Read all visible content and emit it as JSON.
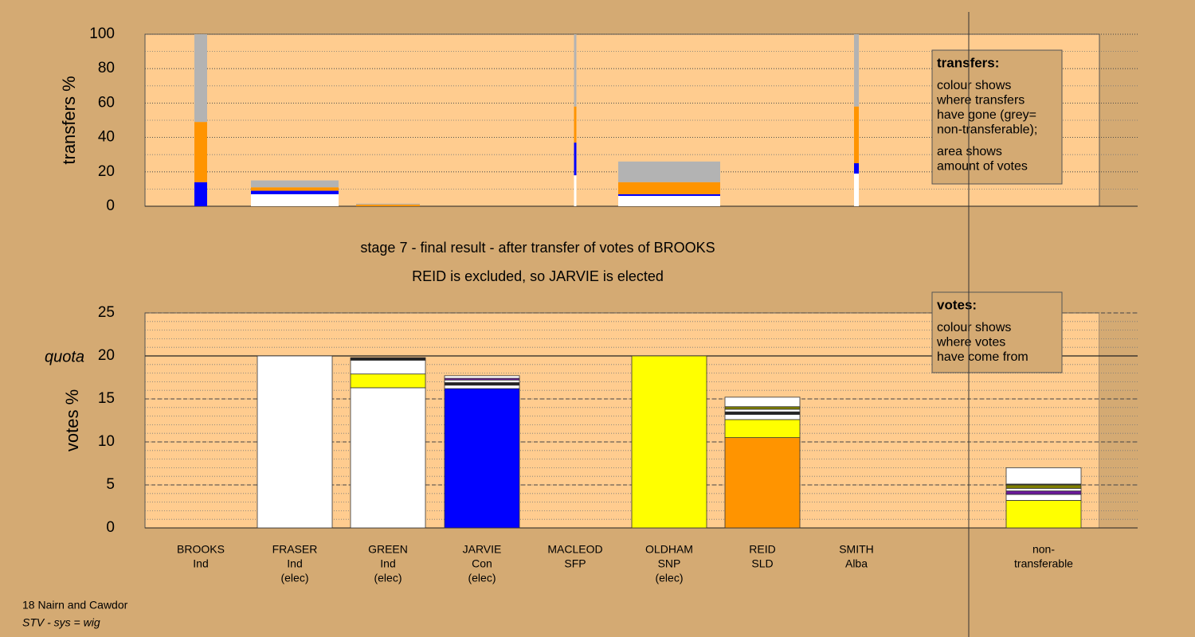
{
  "chart_data": [
    {
      "type": "stacked-bar",
      "ylabel": "transfers %",
      "ylim": [
        0,
        100
      ],
      "yticks": [
        0,
        20,
        40,
        60,
        80,
        100
      ],
      "minor_step": 10,
      "legend": {
        "title": "transfers:",
        "lines": [
          "colour shows",
          "where transfers",
          "have gone (grey=",
          "non-transferable);",
          "area shows",
          "amount of votes"
        ]
      },
      "stacks": [
        [
          {
            "color": "#0000ff",
            "value": 14
          },
          {
            "color": "#ff9400",
            "value": 35
          },
          {
            "color": "#b3b3b3",
            "value": 51
          }
        ],
        [
          {
            "color": "#ffffff",
            "value": 7
          },
          {
            "color": "#0000ff",
            "value": 2
          },
          {
            "color": "#ff9400",
            "value": 2
          },
          {
            "color": "#b3b3b3",
            "value": 4
          }
        ],
        [
          {
            "color": "#ff9400",
            "value": 1
          },
          {
            "color": "#b3b3b3",
            "value": 0.5
          }
        ],
        [],
        [
          {
            "color": "#ffffff",
            "value": 18
          },
          {
            "color": "#0000ff",
            "value": 19
          },
          {
            "color": "#ff9400",
            "value": 21
          },
          {
            "color": "#b3b3b3",
            "value": 42
          }
        ],
        [
          {
            "color": "#ffffff",
            "value": 6
          },
          {
            "color": "#0000ff",
            "value": 1
          },
          {
            "color": "#ff9400",
            "value": 7
          },
          {
            "color": "#b3b3b3",
            "value": 12
          }
        ],
        [],
        [
          {
            "color": "#ffffff",
            "value": 19
          },
          {
            "color": "#0000ff",
            "value": 6
          },
          {
            "color": "#ff9400",
            "value": 33
          },
          {
            "color": "#b3b3b3",
            "value": 42
          }
        ],
        []
      ]
    },
    {
      "type": "stacked-bar",
      "title": [
        "stage 7 - final result - after transfer of votes of BROOKS",
        "REID is excluded, so JARVIE is elected"
      ],
      "ylabel": "votes %",
      "ylim": [
        0,
        25
      ],
      "yticks": [
        0,
        5,
        10,
        15,
        20,
        25
      ],
      "minor_step": 1,
      "quota": {
        "value": 20,
        "label": "quota"
      },
      "legend": {
        "title": "votes:",
        "lines": [
          "colour shows",
          "where votes",
          "have come from"
        ]
      },
      "labels": [
        [
          "BROOKS",
          "Ind"
        ],
        [
          "FRASER",
          "Ind",
          "(elec)"
        ],
        [
          "GREEN",
          "Ind",
          "(elec)"
        ],
        [
          "JARVIE",
          "Con",
          "(elec)"
        ],
        [
          "MACLEOD",
          "SFP"
        ],
        [
          "OLDHAM",
          "SNP",
          "(elec)"
        ],
        [
          "REID",
          "SLD"
        ],
        [
          "SMITH",
          "Alba"
        ],
        [
          "non-",
          "transferable"
        ]
      ],
      "stacks": [
        [],
        [
          {
            "color": "#ffffff",
            "value": 20
          }
        ],
        [
          {
            "color": "#ffffff",
            "value": 16.3
          },
          {
            "color": "#ffff00",
            "value": 1.6
          },
          {
            "color": "#ffffff",
            "value": 1.6
          },
          {
            "color": "#222222",
            "value": 0.3
          }
        ],
        [
          {
            "color": "#0000ff",
            "value": 16.2
          },
          {
            "color": "#ffffff",
            "value": 0.4
          },
          {
            "color": "#222222",
            "value": 0.3
          },
          {
            "color": "#ffffff",
            "value": 0.3
          },
          {
            "color": "#6a1b9a",
            "value": 0.2
          },
          {
            "color": "#ffffff",
            "value": 0.3
          }
        ],
        [],
        [
          {
            "color": "#ffff00",
            "value": 20
          }
        ],
        [
          {
            "color": "#ff9400",
            "value": 10.5
          },
          {
            "color": "#ffff00",
            "value": 2.1
          },
          {
            "color": "#ffffff",
            "value": 0.6
          },
          {
            "color": "#222222",
            "value": 0.3
          },
          {
            "color": "#ffffff",
            "value": 0.3
          },
          {
            "color": "#808000",
            "value": 0.3
          },
          {
            "color": "#ffffff",
            "value": 1.1
          }
        ],
        [],
        [
          {
            "color": "#ffff00",
            "value": 3.2
          },
          {
            "color": "#ffffff",
            "value": 0.7
          },
          {
            "color": "#6a1b9a",
            "value": 0.4
          },
          {
            "color": "#ffffff",
            "value": 0.3
          },
          {
            "color": "#808000",
            "value": 0.4
          },
          {
            "color": "#222222",
            "value": 0.1
          },
          {
            "color": "#ffffff",
            "value": 1.9
          }
        ]
      ]
    }
  ],
  "footer": {
    "area": "18 Nairn and Cawdor",
    "system": "STV - sys = wig"
  }
}
